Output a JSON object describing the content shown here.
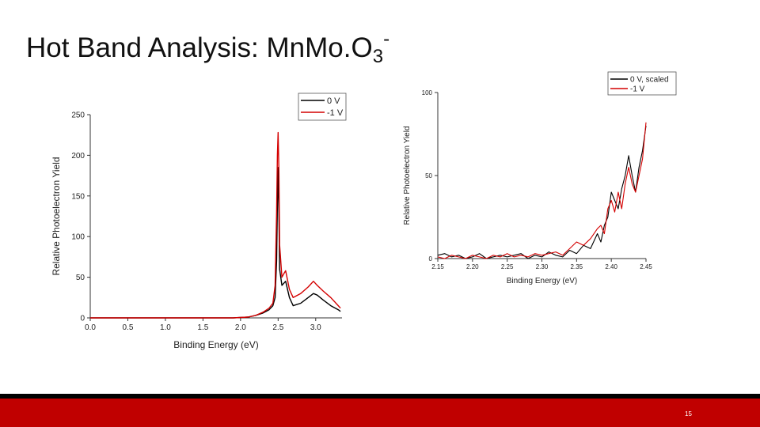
{
  "slide": {
    "title_main": "Hot Band Analysis: Mn",
    "title_mo": "Mo",
    "title_o": "O",
    "title_sub": "3",
    "title_sup": "-",
    "page_number": "15",
    "footer_color": "#c00000",
    "footer_line_color": "#000000"
  },
  "chart_data": [
    {
      "type": "line",
      "xlabel": "Binding Energy (eV)",
      "ylabel": "Relative Photoelectron Yield",
      "xlim": [
        0.0,
        3.35
      ],
      "ylim": [
        0,
        250
      ],
      "xticks": [
        "0.0",
        "0.5",
        "1.0",
        "1.5",
        "2.0",
        "2.5",
        "3.0"
      ],
      "yticks": [
        "0",
        "50",
        "100",
        "150",
        "200",
        "250"
      ],
      "legend_position": "top-right",
      "series": [
        {
          "name": "0 V",
          "color": "#000000",
          "points": [
            [
              0.0,
              0
            ],
            [
              1.9,
              0
            ],
            [
              2.1,
              1
            ],
            [
              2.2,
              3
            ],
            [
              2.3,
              6
            ],
            [
              2.38,
              10
            ],
            [
              2.43,
              15
            ],
            [
              2.46,
              25
            ],
            [
              2.48,
              70
            ],
            [
              2.49,
              140
            ],
            [
              2.5,
              185
            ],
            [
              2.51,
              130
            ],
            [
              2.52,
              60
            ],
            [
              2.55,
              40
            ],
            [
              2.6,
              45
            ],
            [
              2.65,
              25
            ],
            [
              2.7,
              15
            ],
            [
              2.8,
              18
            ],
            [
              2.9,
              25
            ],
            [
              2.97,
              30
            ],
            [
              3.02,
              28
            ],
            [
              3.1,
              22
            ],
            [
              3.2,
              15
            ],
            [
              3.3,
              10
            ],
            [
              3.33,
              8
            ]
          ]
        },
        {
          "name": "-1 V",
          "color": "#d40000",
          "points": [
            [
              0.0,
              0
            ],
            [
              1.9,
              0
            ],
            [
              2.1,
              1
            ],
            [
              2.2,
              3
            ],
            [
              2.3,
              7
            ],
            [
              2.38,
              12
            ],
            [
              2.43,
              18
            ],
            [
              2.46,
              40
            ],
            [
              2.48,
              130
            ],
            [
              2.49,
              200
            ],
            [
              2.5,
              228
            ],
            [
              2.51,
              180
            ],
            [
              2.52,
              90
            ],
            [
              2.55,
              50
            ],
            [
              2.58,
              55
            ],
            [
              2.6,
              58
            ],
            [
              2.65,
              35
            ],
            [
              2.7,
              25
            ],
            [
              2.8,
              30
            ],
            [
              2.9,
              38
            ],
            [
              2.97,
              45
            ],
            [
              3.02,
              40
            ],
            [
              3.1,
              33
            ],
            [
              3.2,
              25
            ],
            [
              3.3,
              15
            ],
            [
              3.33,
              12
            ]
          ]
        }
      ]
    },
    {
      "type": "line",
      "xlabel": "Binding Energy (eV)",
      "ylabel": "Relative Photoelectron Yield",
      "xlim": [
        2.15,
        2.45
      ],
      "ylim": [
        0,
        100
      ],
      "xticks": [
        "2.15",
        "2.20",
        "2.25",
        "2.30",
        "2.35",
        "2.40",
        "2.45"
      ],
      "yticks": [
        "0",
        "50",
        "100"
      ],
      "legend_position": "top-right",
      "series": [
        {
          "name": "0 V, scaled",
          "color": "#000000",
          "points": [
            [
              2.15,
              2
            ],
            [
              2.16,
              3
            ],
            [
              2.17,
              1
            ],
            [
              2.18,
              2
            ],
            [
              2.19,
              0
            ],
            [
              2.2,
              1
            ],
            [
              2.21,
              3
            ],
            [
              2.22,
              0
            ],
            [
              2.23,
              1
            ],
            [
              2.24,
              2
            ],
            [
              2.25,
              1
            ],
            [
              2.26,
              2
            ],
            [
              2.27,
              3
            ],
            [
              2.28,
              0
            ],
            [
              2.29,
              2
            ],
            [
              2.3,
              1
            ],
            [
              2.31,
              4
            ],
            [
              2.32,
              2
            ],
            [
              2.33,
              1
            ],
            [
              2.34,
              5
            ],
            [
              2.35,
              3
            ],
            [
              2.36,
              8
            ],
            [
              2.37,
              6
            ],
            [
              2.38,
              15
            ],
            [
              2.385,
              10
            ],
            [
              2.39,
              20
            ],
            [
              2.395,
              25
            ],
            [
              2.4,
              40
            ],
            [
              2.405,
              35
            ],
            [
              2.41,
              30
            ],
            [
              2.415,
              42
            ],
            [
              2.42,
              50
            ],
            [
              2.425,
              62
            ],
            [
              2.43,
              50
            ],
            [
              2.435,
              40
            ],
            [
              2.44,
              55
            ],
            [
              2.445,
              65
            ],
            [
              2.45,
              80
            ]
          ]
        },
        {
          "name": "-1 V",
          "color": "#d40000",
          "points": [
            [
              2.15,
              1
            ],
            [
              2.16,
              0
            ],
            [
              2.17,
              2
            ],
            [
              2.18,
              1
            ],
            [
              2.19,
              0
            ],
            [
              2.2,
              2
            ],
            [
              2.21,
              1
            ],
            [
              2.22,
              0
            ],
            [
              2.23,
              2
            ],
            [
              2.24,
              1
            ],
            [
              2.25,
              3
            ],
            [
              2.26,
              1
            ],
            [
              2.27,
              2
            ],
            [
              2.28,
              1
            ],
            [
              2.29,
              3
            ],
            [
              2.3,
              2
            ],
            [
              2.31,
              3
            ],
            [
              2.32,
              4
            ],
            [
              2.33,
              2
            ],
            [
              2.34,
              6
            ],
            [
              2.35,
              10
            ],
            [
              2.36,
              8
            ],
            [
              2.37,
              12
            ],
            [
              2.38,
              18
            ],
            [
              2.385,
              20
            ],
            [
              2.39,
              15
            ],
            [
              2.395,
              30
            ],
            [
              2.4,
              35
            ],
            [
              2.405,
              28
            ],
            [
              2.41,
              40
            ],
            [
              2.415,
              30
            ],
            [
              2.42,
              45
            ],
            [
              2.425,
              55
            ],
            [
              2.43,
              45
            ],
            [
              2.435,
              40
            ],
            [
              2.44,
              50
            ],
            [
              2.445,
              60
            ],
            [
              2.45,
              82
            ]
          ]
        }
      ]
    }
  ]
}
